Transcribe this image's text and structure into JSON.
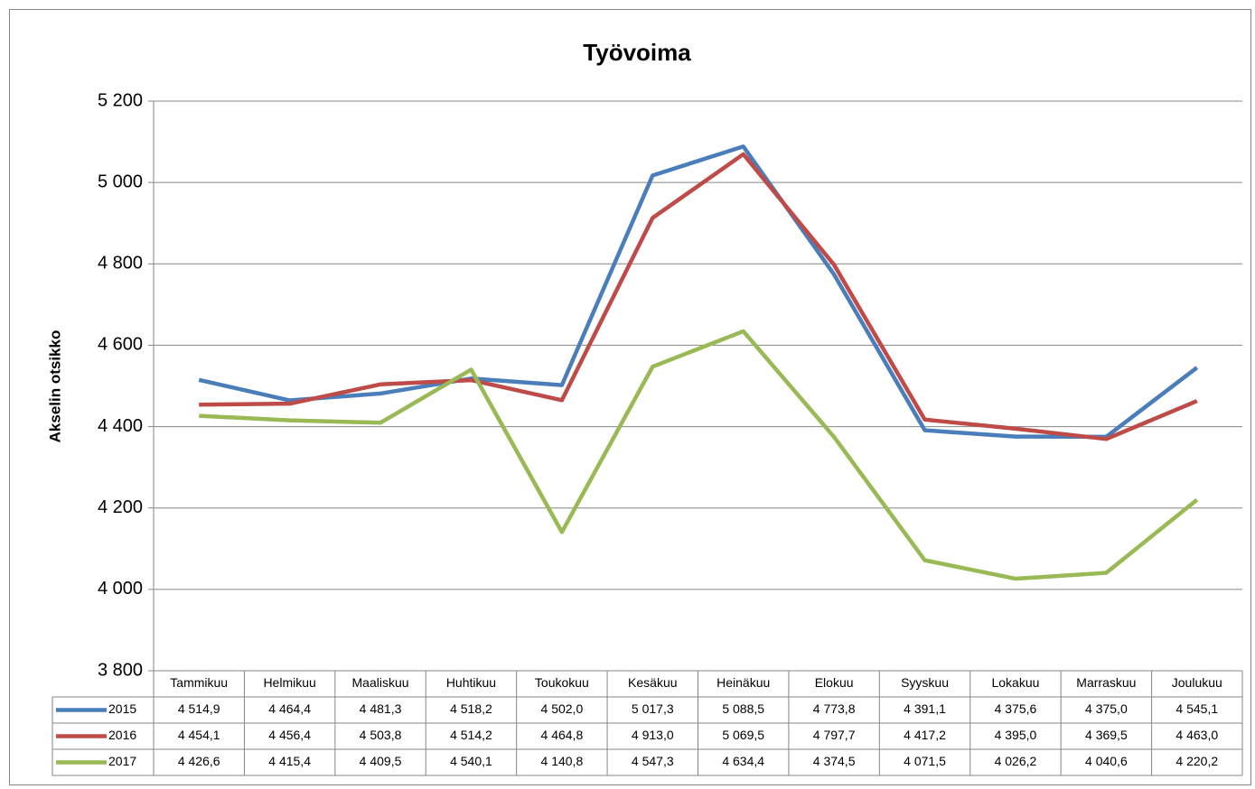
{
  "chart_data": {
    "type": "line",
    "title": "Työvoima",
    "y_label": "Akselin otsikko",
    "categories": [
      "Tammikuu",
      "Helmikuu",
      "Maaliskuu",
      "Huhtikuu",
      "Toukokuu",
      "Kesäkuu",
      "Heinäkuu",
      "Elokuu",
      "Syyskuu",
      "Lokakuu",
      "Marraskuu",
      "Joulukuu"
    ],
    "series": [
      {
        "name": "2015",
        "color": "#4a7ebb",
        "values": [
          4514.9,
          4464.4,
          4481.3,
          4518.2,
          4502.0,
          5017.3,
          5088.5,
          4773.8,
          4391.1,
          4375.6,
          4375.0,
          4545.1
        ],
        "value_labels": [
          "4 514,9",
          "4 464,4",
          "4 481,3",
          "4 518,2",
          "4 502,0",
          "5 017,3",
          "5 088,5",
          "4 773,8",
          "4 391,1",
          "4 375,6",
          "4 375,0",
          "4 545,1"
        ]
      },
      {
        "name": "2016",
        "color": "#be4b48",
        "values": [
          4454.1,
          4456.4,
          4503.8,
          4514.2,
          4464.8,
          4913.0,
          5069.5,
          4797.7,
          4417.2,
          4395.0,
          4369.5,
          4463.0
        ],
        "value_labels": [
          "4 454,1",
          "4 456,4",
          "4 503,8",
          "4 514,2",
          "4 464,8",
          "4 913,0",
          "5 069,5",
          "4 797,7",
          "4 417,2",
          "4 395,0",
          "4 369,5",
          "4 463,0"
        ]
      },
      {
        "name": "2017",
        "color": "#98b954",
        "values": [
          4426.6,
          4415.4,
          4409.5,
          4540.1,
          4140.8,
          4547.3,
          4634.4,
          4374.5,
          4071.5,
          4026.2,
          4040.6,
          4220.2
        ],
        "value_labels": [
          "4 426,6",
          "4 415,4",
          "4 409,5",
          "4 540,1",
          "4 140,8",
          "4 547,3",
          "4 634,4",
          "4 374,5",
          "4 071,5",
          "4 026,2",
          "4 040,6",
          "4 220,2"
        ]
      }
    ],
    "ylim": [
      3800,
      5200
    ],
    "yticks": [
      {
        "value": 3800,
        "label": "3 800"
      },
      {
        "value": 4000,
        "label": "4 000"
      },
      {
        "value": 4200,
        "label": "4 200"
      },
      {
        "value": 4400,
        "label": "4 400"
      },
      {
        "value": 4600,
        "label": "4 600"
      },
      {
        "value": 4800,
        "label": "4 800"
      },
      {
        "value": 5000,
        "label": "5 000"
      },
      {
        "value": 5200,
        "label": "5 200"
      }
    ],
    "grid": true,
    "data_table": true
  }
}
